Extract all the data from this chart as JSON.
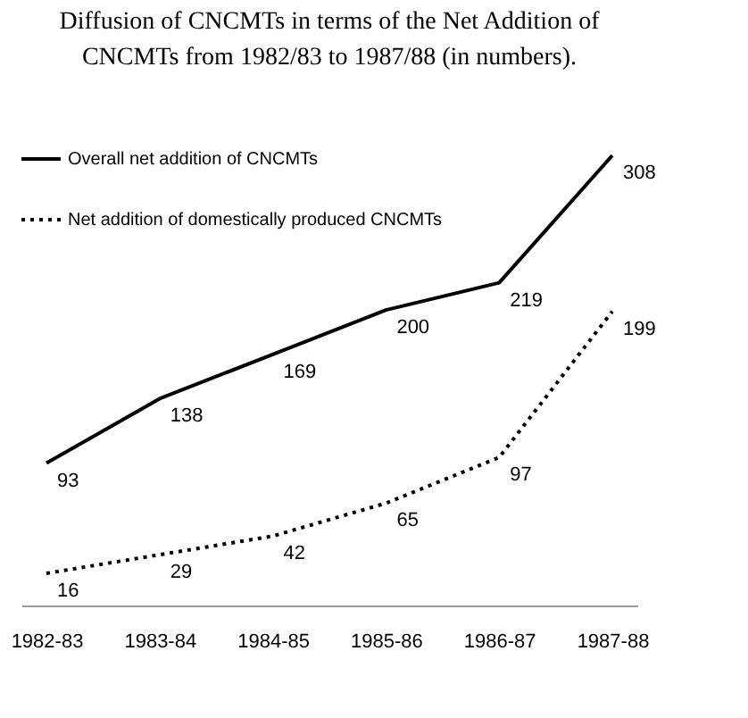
{
  "chart_data": {
    "type": "line",
    "title": "Diffusion of CNCMTs in terms of  the  Net Addition of CNCMTs  from 1982/83 to 1987/88 (in numbers).",
    "categories": [
      "1982-83",
      "1983-84",
      "1984-85",
      "1985-86",
      "1986-87",
      "1987-88"
    ],
    "series": [
      {
        "name": "Overall net addition of CNCMTs",
        "color": "#000000",
        "line_style": "solid",
        "values": [
          93,
          138,
          169,
          200,
          219,
          308
        ]
      },
      {
        "name": "Net addition of domestically produced CNCMTs",
        "color": "#000000",
        "line_style": "dotted",
        "values": [
          16,
          29,
          42,
          65,
          97,
          199
        ]
      }
    ],
    "data_labels": true,
    "grid": false,
    "legend": "top left",
    "marker": "none",
    "tick_labels": "x"
  }
}
